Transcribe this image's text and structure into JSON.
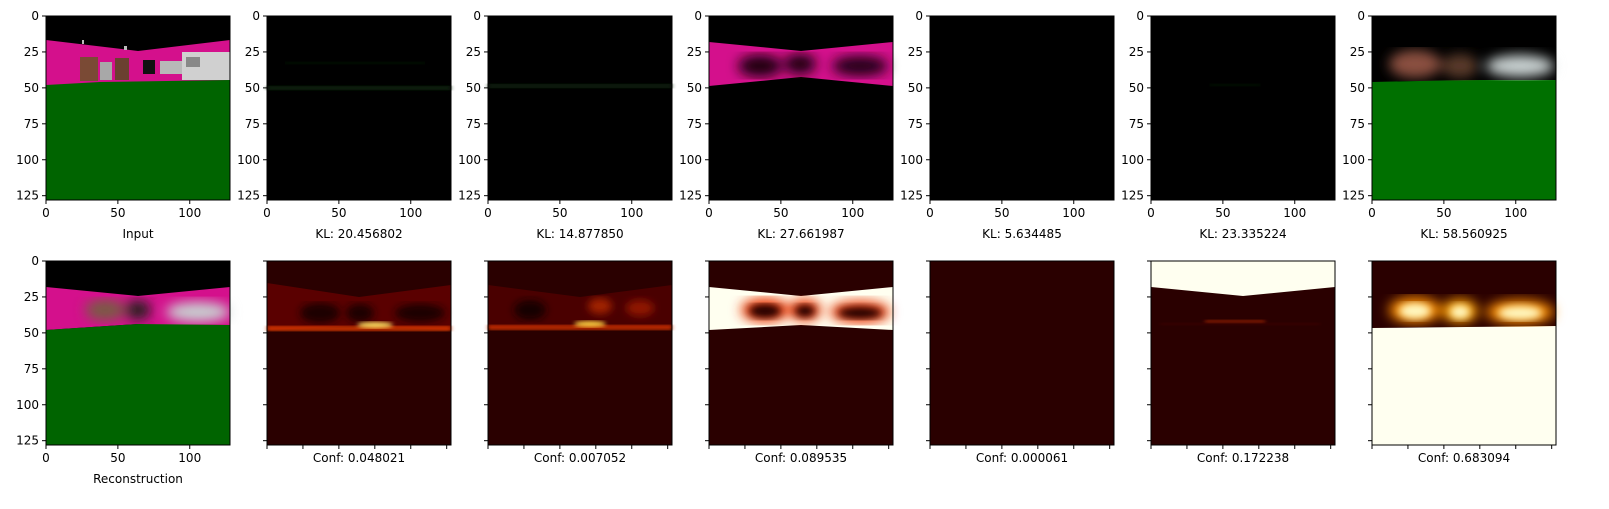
{
  "figure": {
    "top_row": {
      "captions": [
        "Input",
        "KL: 20.456802",
        "KL: 14.877850",
        "KL: 27.661987",
        "KL: 5.634485",
        "KL: 23.335224",
        "KL: 58.560925"
      ],
      "y_ticks": [
        "0",
        "25",
        "50",
        "75",
        "100",
        "125"
      ],
      "x_ticks": [
        "0",
        "50",
        "100"
      ]
    },
    "bottom_row": {
      "captions": [
        "Reconstruction",
        "Conf: 0.048021",
        "Conf: 0.007052",
        "Conf: 0.089535",
        "Conf: 0.000061",
        "Conf: 0.172238",
        "Conf: 0.683094"
      ],
      "y_ticks": [
        "0",
        "25",
        "50",
        "75",
        "100",
        "125"
      ],
      "x_ticks": [
        "0",
        "50",
        "100"
      ]
    },
    "colors": {
      "sky": "#000000",
      "building_magenta": "#d4108c",
      "ground_green": "#006400",
      "heat_dark": "#2a0000",
      "heat_mid": "#e03a00",
      "heat_hot": "#ffe060",
      "heat_white": "#fffff0"
    }
  }
}
